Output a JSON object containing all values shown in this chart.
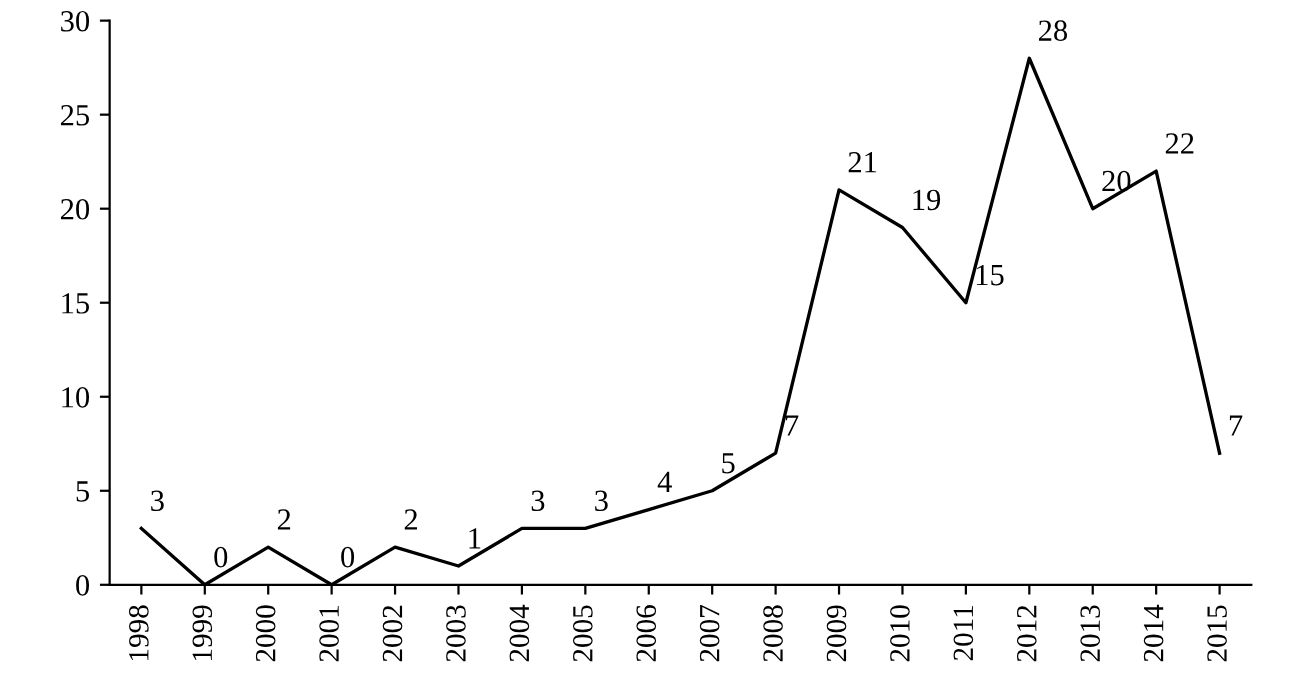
{
  "chart_data": {
    "type": "line",
    "categories": [
      "1998",
      "1999",
      "2000",
      "2001",
      "2002",
      "2003",
      "2004",
      "2005",
      "2006",
      "2007",
      "2008",
      "2009",
      "2010",
      "2011",
      "2012",
      "2013",
      "2014",
      "2015"
    ],
    "values": [
      3,
      0,
      2,
      0,
      2,
      1,
      3,
      3,
      4,
      5,
      7,
      21,
      19,
      15,
      28,
      20,
      22,
      7
    ],
    "color": "#000000",
    "ylim": [
      0,
      30
    ],
    "yticks": [
      0,
      5,
      10,
      15,
      20,
      25,
      30
    ],
    "grid": false,
    "legend": false,
    "marker": "none",
    "line_style": "solid",
    "data_labels": true
  }
}
